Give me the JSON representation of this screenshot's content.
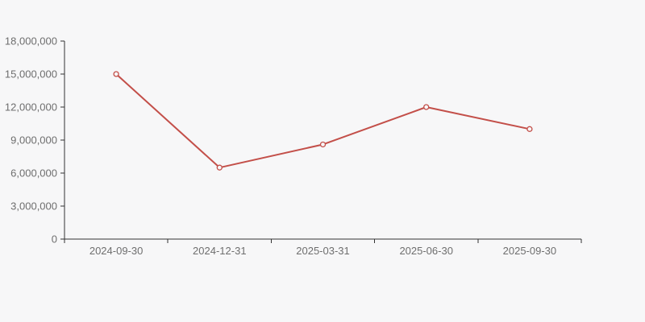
{
  "page": {
    "background_color": "#f7f7f8"
  },
  "chart_data": {
    "type": "line",
    "title": "",
    "xlabel": "",
    "ylabel": "",
    "categories": [
      "2024-09-30",
      "2024-12-31",
      "2025-03-31",
      "2025-06-30",
      "2025-09-30"
    ],
    "series": [
      {
        "name": "series-1",
        "values": [
          15000000,
          6500000,
          8600000,
          12000000,
          10000000
        ],
        "color": "#c34f49",
        "marker": "open-circle",
        "marker_fill": "#f7f7f8"
      }
    ],
    "ylim": [
      0,
      18000000
    ],
    "y_ticks": [
      0,
      3000000,
      6000000,
      9000000,
      12000000,
      15000000,
      18000000
    ],
    "y_tick_labels": [
      "0",
      "3,000,000",
      "6,000,000",
      "9,000,000",
      "12,000,000",
      "15,000,000",
      "18,000,000"
    ],
    "x_axis_boundary_ticks": true,
    "grid": false,
    "legend": false,
    "axis_color": "#333333",
    "label_color": "#6e6e6e"
  }
}
